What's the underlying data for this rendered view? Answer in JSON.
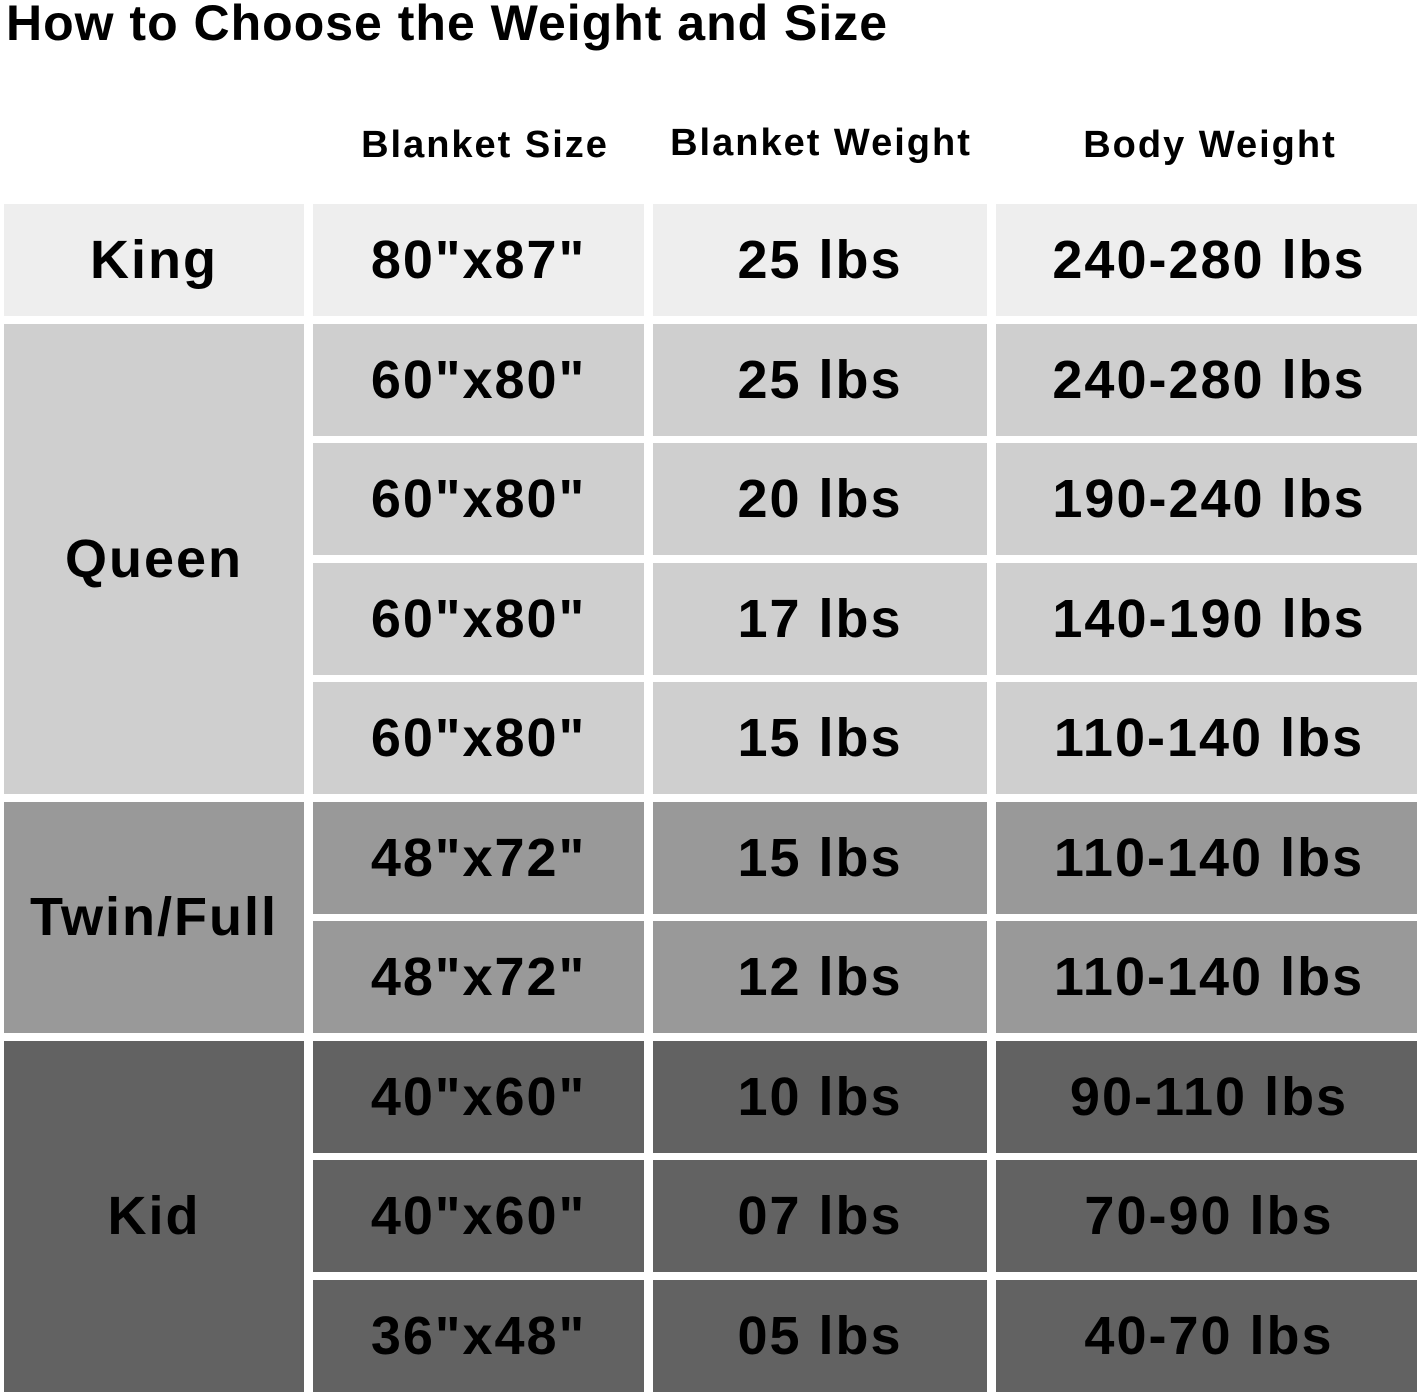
{
  "title": "How to Choose the Weight and Size",
  "columns": [
    "Blanket Size",
    "Blanket Weight",
    "Body Weight"
  ],
  "colors": {
    "King": "#eeeeee",
    "Queen": "#cfcfcf",
    "Twin/Full": "#999999",
    "Kid": "#626262"
  },
  "groups": [
    {
      "name": "King",
      "rows": [
        [
          "80\"x87\"",
          "25 lbs",
          "240-280 lbs"
        ]
      ]
    },
    {
      "name": "Queen",
      "rows": [
        [
          "60\"x80\"",
          "25 lbs",
          "240-280 lbs"
        ],
        [
          "60\"x80\"",
          "20 lbs",
          "190-240 lbs"
        ],
        [
          "60\"x80\"",
          "17 lbs",
          "140-190 lbs"
        ],
        [
          "60\"x80\"",
          "15 lbs",
          "110-140 lbs"
        ]
      ]
    },
    {
      "name": "Twin/Full",
      "rows": [
        [
          "48\"x72\"",
          "15 lbs",
          "110-140 lbs"
        ],
        [
          "48\"x72\"",
          "12 lbs",
          "110-140 lbs"
        ]
      ]
    },
    {
      "name": "Kid",
      "rows": [
        [
          "40\"x60\"",
          "10 lbs",
          "90-110 lbs"
        ],
        [
          "40\"x60\"",
          "07 lbs",
          "70-90 lbs"
        ],
        [
          "36\"x48\"",
          "05 lbs",
          "40-70 lbs"
        ]
      ]
    }
  ]
}
